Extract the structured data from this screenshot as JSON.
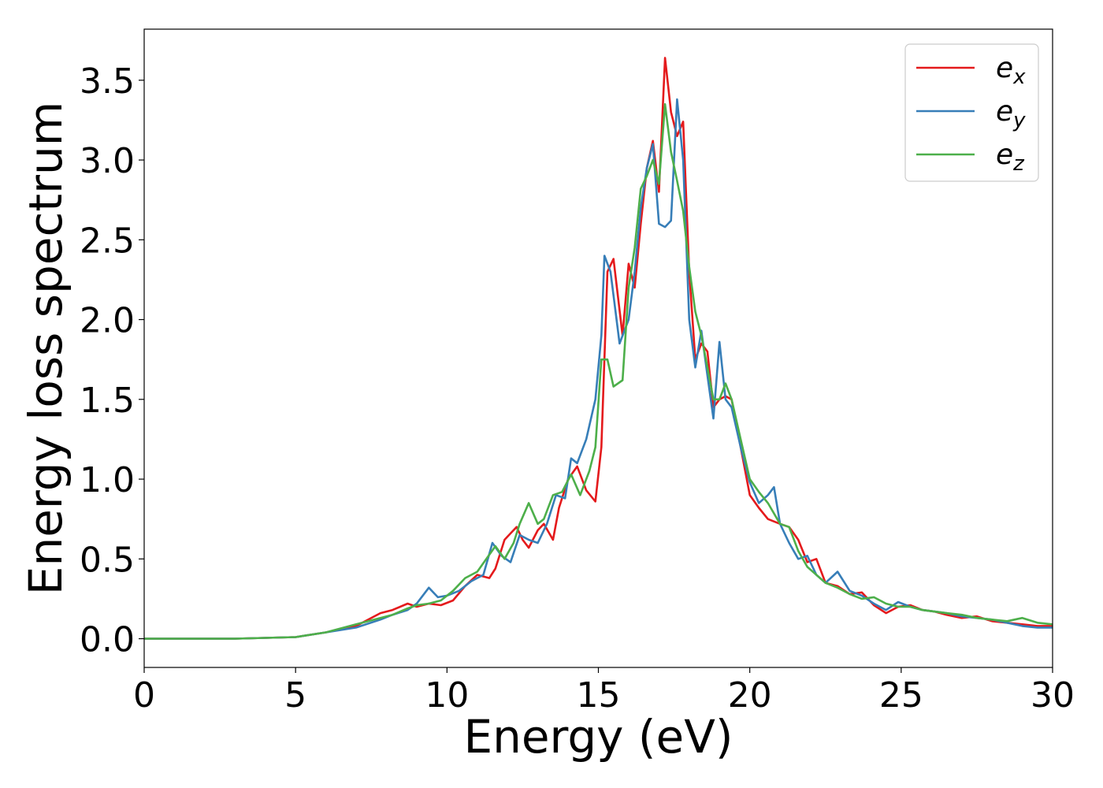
{
  "chart_data": {
    "type": "line",
    "title": "",
    "xlabel": "Energy (eV)",
    "ylabel": "Energy loss spectrum",
    "xlim": [
      0,
      30
    ],
    "ylim": [
      -0.18,
      3.82
    ],
    "xticks": [
      0,
      5,
      10,
      15,
      20,
      25,
      30
    ],
    "xtick_labels": [
      "0",
      "5",
      "10",
      "15",
      "20",
      "25",
      "30"
    ],
    "yticks": [
      0.0,
      0.5,
      1.0,
      1.5,
      2.0,
      2.5,
      3.0,
      3.5
    ],
    "ytick_labels": [
      "0.0",
      "0.5",
      "1.0",
      "1.5",
      "2.0",
      "2.5",
      "3.0",
      "3.5"
    ],
    "grid": false,
    "legend_position": "top-right",
    "series": [
      {
        "name": "e_x",
        "legend_base": "e",
        "legend_sub": "x",
        "color": "#e41a1c",
        "x": [
          0,
          3,
          5,
          6,
          7,
          7.8,
          8.2,
          8.7,
          9.0,
          9.4,
          9.8,
          10.2,
          10.6,
          11.0,
          11.4,
          11.6,
          11.9,
          12.1,
          12.3,
          12.5,
          12.7,
          13.0,
          13.2,
          13.5,
          13.7,
          14.0,
          14.3,
          14.6,
          14.9,
          15.1,
          15.3,
          15.5,
          15.8,
          16.0,
          16.2,
          16.4,
          16.6,
          16.8,
          17.0,
          17.2,
          17.4,
          17.6,
          17.8,
          18.0,
          18.2,
          18.4,
          18.6,
          18.8,
          19.0,
          19.2,
          19.4,
          19.7,
          20.0,
          20.3,
          20.6,
          21.0,
          21.3,
          21.6,
          21.9,
          22.2,
          22.5,
          22.9,
          23.3,
          23.7,
          24.1,
          24.5,
          24.9,
          25.3,
          25.7,
          26.1,
          26.5,
          27.0,
          27.5,
          28.0,
          28.5,
          29.0,
          29.5,
          30.0
        ],
        "y": [
          0.0,
          0.0,
          0.01,
          0.04,
          0.08,
          0.16,
          0.18,
          0.22,
          0.2,
          0.22,
          0.21,
          0.24,
          0.33,
          0.4,
          0.38,
          0.44,
          0.62,
          0.66,
          0.7,
          0.62,
          0.57,
          0.68,
          0.72,
          0.62,
          0.82,
          1.0,
          1.08,
          0.93,
          0.86,
          1.2,
          2.3,
          2.38,
          1.9,
          2.35,
          2.2,
          2.6,
          2.95,
          3.12,
          2.8,
          3.64,
          3.3,
          3.15,
          3.24,
          2.3,
          1.75,
          1.85,
          1.8,
          1.45,
          1.5,
          1.52,
          1.5,
          1.2,
          0.9,
          0.82,
          0.75,
          0.72,
          0.7,
          0.62,
          0.48,
          0.5,
          0.35,
          0.33,
          0.28,
          0.29,
          0.21,
          0.16,
          0.2,
          0.21,
          0.18,
          0.17,
          0.15,
          0.13,
          0.14,
          0.11,
          0.1,
          0.09,
          0.08,
          0.08
        ]
      },
      {
        "name": "e_y",
        "legend_base": "e",
        "legend_sub": "y",
        "color": "#377eb8",
        "x": [
          0,
          3,
          5,
          6,
          7,
          7.8,
          8.2,
          8.7,
          9.0,
          9.4,
          9.7,
          10.0,
          10.4,
          10.8,
          11.2,
          11.5,
          11.8,
          12.1,
          12.4,
          12.7,
          13.0,
          13.3,
          13.6,
          13.9,
          14.1,
          14.3,
          14.6,
          14.9,
          15.1,
          15.2,
          15.4,
          15.7,
          16.0,
          16.2,
          16.4,
          16.6,
          16.8,
          17.0,
          17.2,
          17.4,
          17.6,
          17.8,
          18.0,
          18.2,
          18.4,
          18.6,
          18.8,
          19.0,
          19.2,
          19.4,
          19.7,
          20.0,
          20.3,
          20.6,
          20.8,
          21.0,
          21.3,
          21.6,
          21.9,
          22.2,
          22.5,
          22.9,
          23.3,
          23.7,
          24.1,
          24.5,
          24.9,
          25.3,
          25.7,
          26.1,
          26.5,
          27.0,
          27.5,
          28.0,
          28.5,
          29.0,
          29.5,
          30.0
        ],
        "y": [
          0.0,
          0.0,
          0.01,
          0.04,
          0.07,
          0.12,
          0.15,
          0.18,
          0.22,
          0.32,
          0.26,
          0.27,
          0.3,
          0.36,
          0.4,
          0.6,
          0.52,
          0.48,
          0.65,
          0.62,
          0.6,
          0.72,
          0.9,
          0.88,
          1.13,
          1.1,
          1.25,
          1.5,
          1.9,
          2.4,
          2.3,
          1.85,
          2.0,
          2.3,
          2.7,
          2.95,
          3.1,
          2.6,
          2.58,
          2.62,
          3.38,
          3.0,
          2.0,
          1.7,
          1.93,
          1.65,
          1.38,
          1.86,
          1.5,
          1.45,
          1.2,
          0.98,
          0.85,
          0.9,
          0.95,
          0.72,
          0.6,
          0.5,
          0.52,
          0.4,
          0.35,
          0.42,
          0.3,
          0.27,
          0.22,
          0.18,
          0.23,
          0.2,
          0.18,
          0.17,
          0.16,
          0.14,
          0.13,
          0.12,
          0.1,
          0.08,
          0.07,
          0.07
        ]
      },
      {
        "name": "e_z",
        "legend_base": "e",
        "legend_sub": "z",
        "color": "#4daf4a",
        "x": [
          0,
          3,
          5,
          6,
          7,
          7.8,
          8.2,
          8.7,
          9.0,
          9.4,
          9.8,
          10.2,
          10.6,
          11.0,
          11.3,
          11.6,
          11.9,
          12.2,
          12.4,
          12.7,
          13.0,
          13.2,
          13.5,
          13.8,
          14.1,
          14.4,
          14.7,
          14.9,
          15.1,
          15.3,
          15.5,
          15.8,
          16.0,
          16.2,
          16.4,
          16.6,
          16.8,
          17.0,
          17.2,
          17.4,
          17.6,
          17.8,
          18.0,
          18.2,
          18.4,
          18.6,
          18.8,
          19.0,
          19.2,
          19.4,
          19.7,
          20.0,
          20.3,
          20.6,
          21.0,
          21.3,
          21.6,
          21.9,
          22.2,
          22.5,
          22.9,
          23.3,
          23.7,
          24.1,
          24.5,
          24.9,
          25.3,
          25.7,
          26.1,
          26.5,
          27.0,
          27.5,
          28.0,
          28.5,
          29.0,
          29.5,
          30.0
        ],
        "y": [
          0.0,
          0.0,
          0.01,
          0.04,
          0.09,
          0.13,
          0.15,
          0.19,
          0.21,
          0.22,
          0.24,
          0.3,
          0.38,
          0.42,
          0.5,
          0.58,
          0.5,
          0.6,
          0.72,
          0.85,
          0.72,
          0.75,
          0.9,
          0.92,
          1.03,
          0.9,
          1.05,
          1.2,
          1.75,
          1.75,
          1.58,
          1.62,
          2.2,
          2.45,
          2.82,
          2.9,
          3.0,
          2.85,
          3.35,
          3.05,
          2.87,
          2.68,
          2.33,
          2.05,
          1.9,
          1.7,
          1.5,
          1.5,
          1.6,
          1.5,
          1.25,
          1.0,
          0.92,
          0.85,
          0.72,
          0.7,
          0.55,
          0.45,
          0.4,
          0.35,
          0.32,
          0.28,
          0.25,
          0.26,
          0.22,
          0.2,
          0.2,
          0.18,
          0.17,
          0.16,
          0.15,
          0.13,
          0.12,
          0.11,
          0.13,
          0.1,
          0.09
        ]
      }
    ]
  }
}
